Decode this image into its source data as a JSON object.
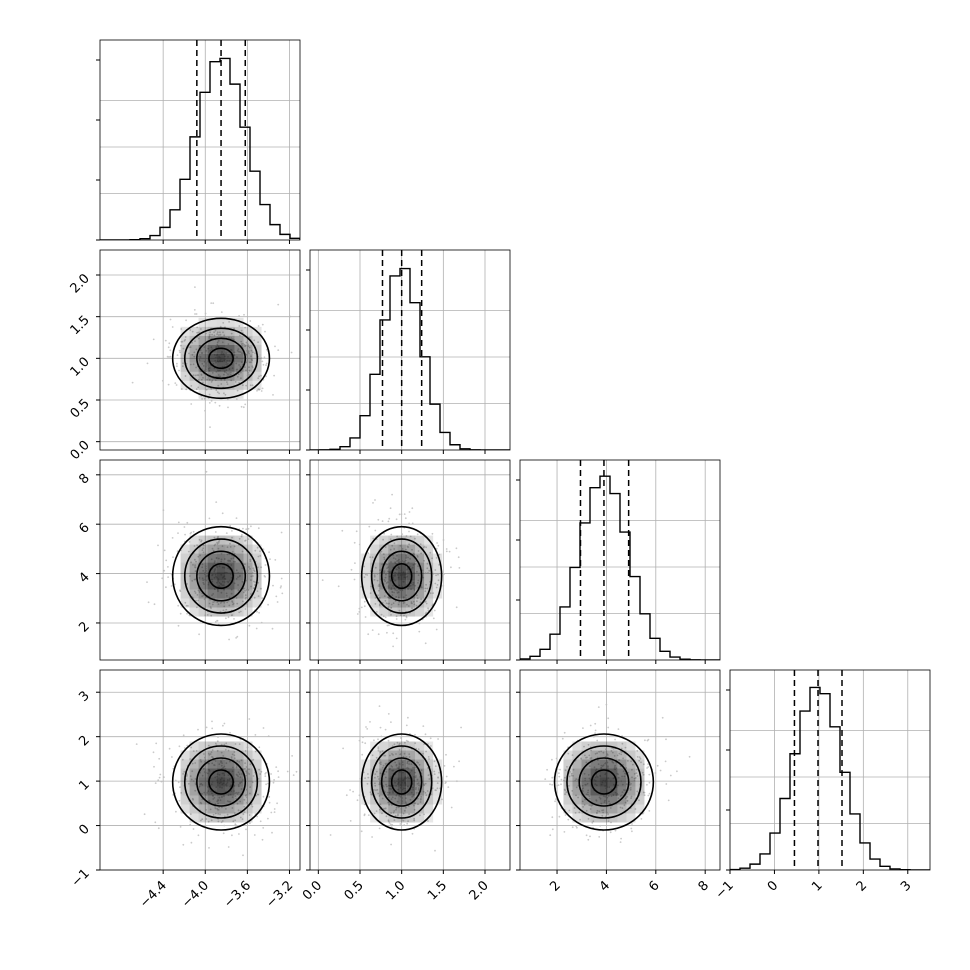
{
  "chart_data": {
    "type": "corner",
    "dimensions": 4,
    "variables": [
      {
        "label": "",
        "range": [
          -5.0,
          -3.1
        ],
        "ticks": [
          -4.4,
          -4.0,
          -3.6,
          -3.2
        ],
        "tick_labels": [
          "−4.4",
          "−4.0",
          "−3.6",
          "−3.2"
        ],
        "quantiles": [
          -4.08,
          -3.85,
          -3.62
        ],
        "peak": -3.85,
        "sigma": 0.23
      },
      {
        "label": "",
        "range": [
          -0.1,
          2.3
        ],
        "ticks": [
          0.0,
          0.5,
          1.0,
          1.5,
          2.0
        ],
        "tick_labels": [
          "0.0",
          "0.5",
          "1.0",
          "1.5",
          "2.0"
        ],
        "quantiles": [
          0.77,
          1.0,
          1.24
        ],
        "peak": 1.0,
        "sigma": 0.24
      },
      {
        "label": "",
        "range": [
          0.5,
          8.6
        ],
        "ticks": [
          2,
          4,
          6,
          8
        ],
        "tick_labels": [
          "2",
          "4",
          "6",
          "8"
        ],
        "quantiles": [
          2.95,
          3.9,
          4.9
        ],
        "peak": 3.9,
        "sigma": 1.0
      },
      {
        "label": "",
        "range": [
          -1.0,
          3.5
        ],
        "ticks": [
          -1,
          0,
          1,
          2,
          3
        ],
        "tick_labels": [
          "−1",
          "0",
          "1",
          "2",
          "3"
        ],
        "quantiles": [
          0.45,
          0.98,
          1.52
        ],
        "peak": 0.98,
        "sigma": 0.54
      }
    ],
    "contour_levels": [
      0.5,
      1.0,
      1.5,
      2.0
    ],
    "grid": true,
    "colors": {
      "line": "#000000",
      "grid": "#b0b0b0",
      "points": "#bdbdbd",
      "density": "#000000"
    }
  }
}
